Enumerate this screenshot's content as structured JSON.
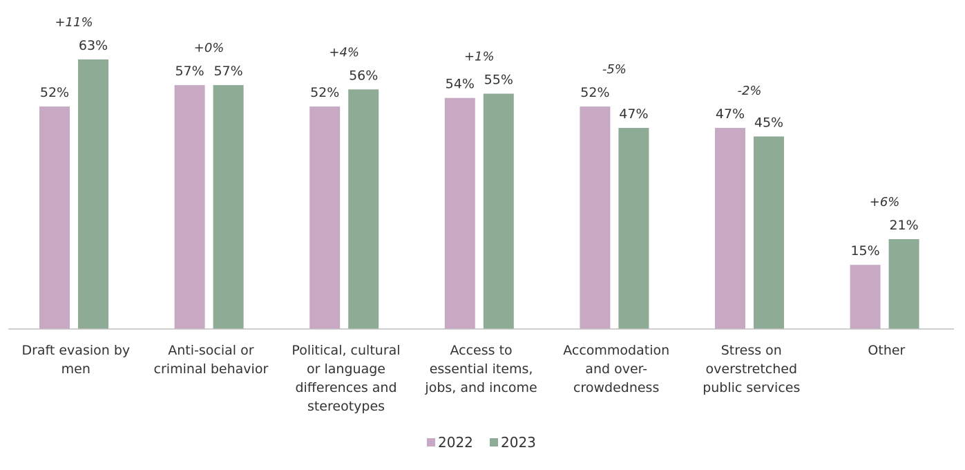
{
  "chart_data": {
    "type": "bar",
    "categories": [
      [
        "Draft evasion by",
        "men"
      ],
      [
        "Anti-social or",
        "criminal behavior"
      ],
      [
        "Political, cultural",
        "or language",
        "differences and",
        "stereotypes"
      ],
      [
        "Access to",
        "essential items,",
        "jobs, and income"
      ],
      [
        "Accommodation",
        "and over-",
        "crowdedness"
      ],
      [
        "Stress on",
        "overstretched",
        "public services"
      ],
      [
        "Other"
      ]
    ],
    "series": [
      {
        "name": "2022",
        "color": "#c8a9c4",
        "values": [
          52,
          57,
          52,
          54,
          52,
          47,
          15
        ],
        "labels": [
          "52%",
          "57%",
          "52%",
          "54%",
          "52%",
          "47%",
          "15%"
        ]
      },
      {
        "name": "2023",
        "color": "#8eab95",
        "values": [
          63,
          57,
          56,
          55,
          47,
          45,
          21
        ],
        "labels": [
          "63%",
          "57%",
          "56%",
          "55%",
          "47%",
          "45%",
          "21%"
        ]
      }
    ],
    "change_labels": [
      "+11%",
      "+0%",
      "+4%",
      "+1%",
      "-5%",
      "-2%",
      "+6%"
    ],
    "ylim": [
      0,
      63
    ],
    "grid": false,
    "legend_position": "bottom"
  }
}
